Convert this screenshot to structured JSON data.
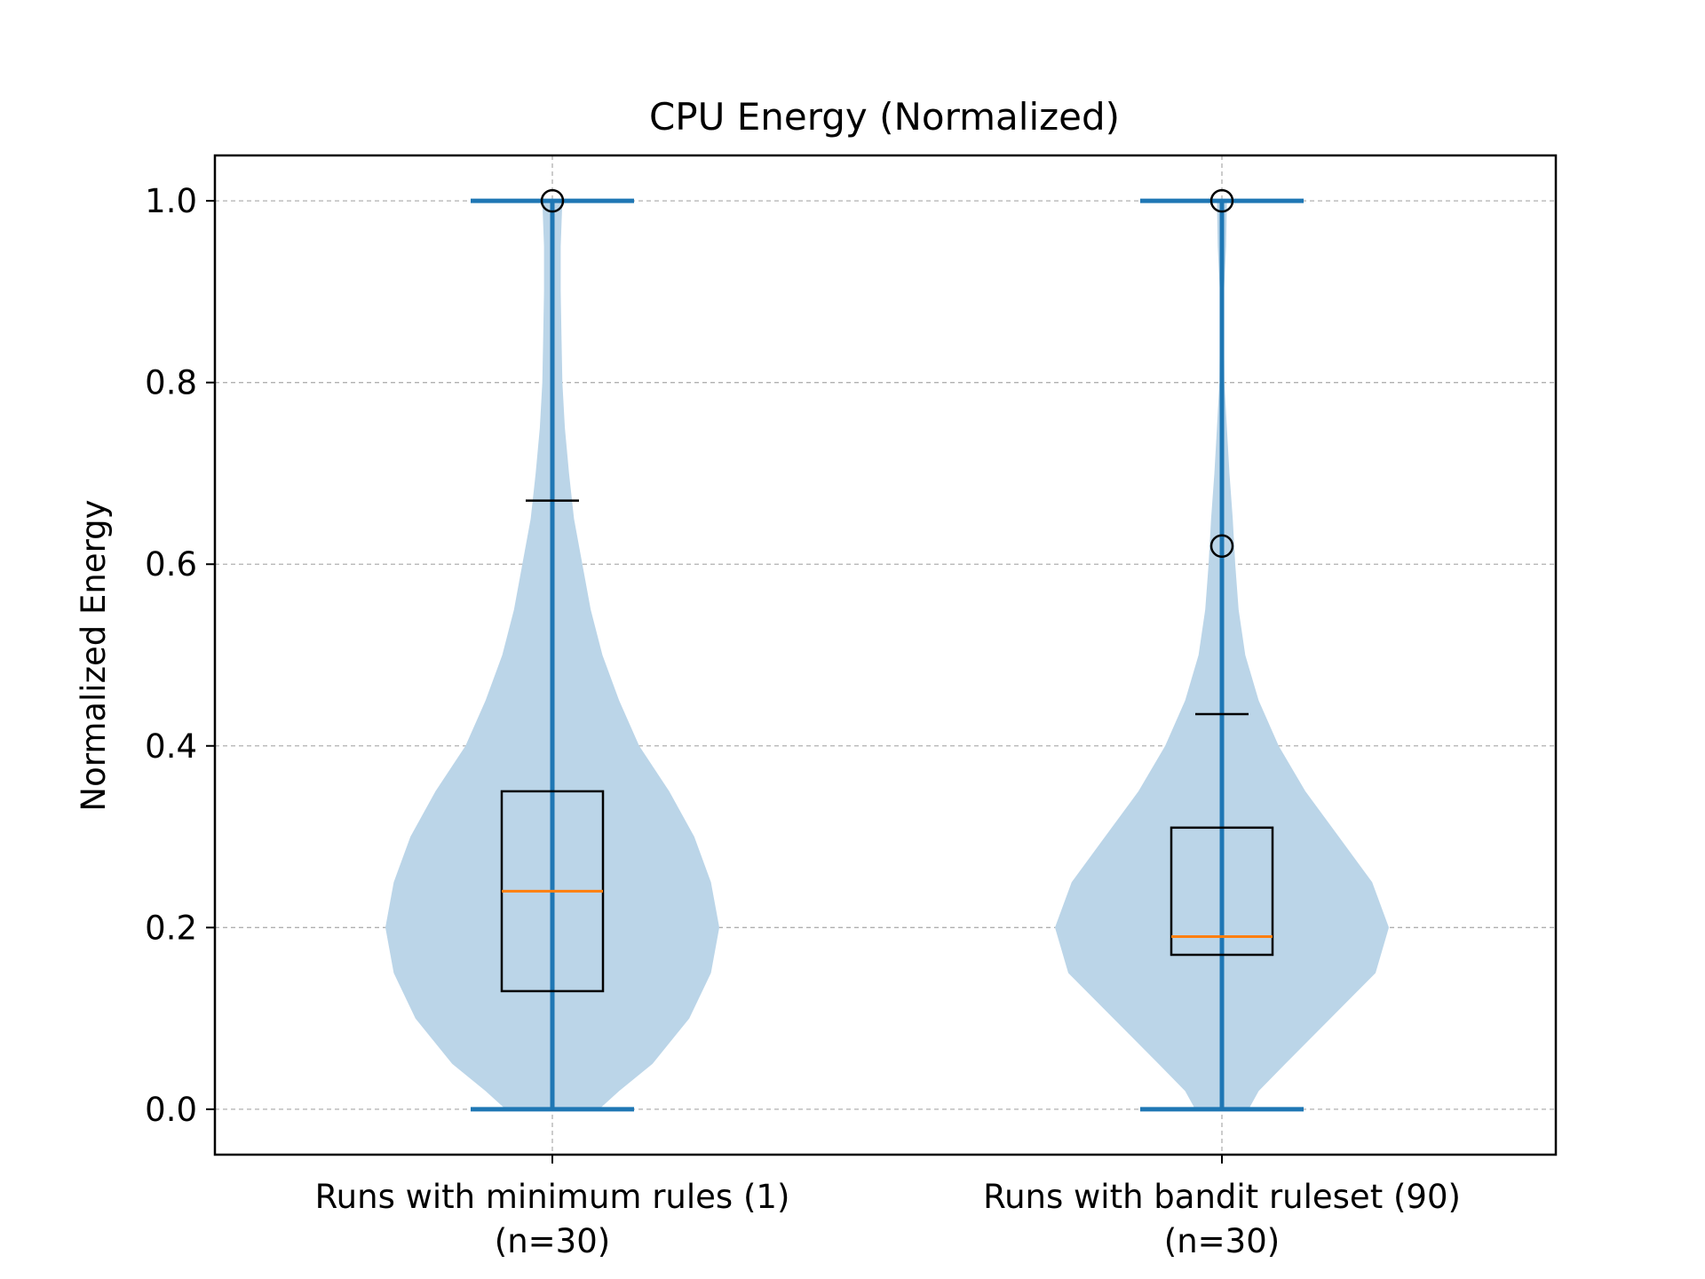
{
  "chart_data": {
    "type": "violin",
    "title": "CPU Energy (Normalized)",
    "xlabel": "",
    "ylabel": "Normalized Energy",
    "ylim": [
      -0.05,
      1.05
    ],
    "yticks": [
      "0.0",
      "0.2",
      "0.4",
      "0.6",
      "0.8",
      "1.0"
    ],
    "grid": true,
    "colors": {
      "violin_fill": "#bbd5e8",
      "violin_line": "#1f77b4",
      "median": "#ff7f0e",
      "box": "#000000",
      "grid": "#b0b0b0"
    },
    "groups": [
      {
        "label": [
          "Runs with minimum rules (1)",
          "(n=30)"
        ],
        "min": 0.0,
        "max": 1.0,
        "mean": 0.67,
        "q1": 0.13,
        "median": 0.24,
        "q3": 0.35,
        "whisker_low": 0.0,
        "whisker_high": 1.0,
        "outliers": [
          1.0
        ],
        "density": [
          [
            0.0,
            0.28
          ],
          [
            0.02,
            0.4
          ],
          [
            0.05,
            0.6
          ],
          [
            0.1,
            0.82
          ],
          [
            0.15,
            0.95
          ],
          [
            0.2,
            1.0
          ],
          [
            0.25,
            0.95
          ],
          [
            0.3,
            0.85
          ],
          [
            0.35,
            0.7
          ],
          [
            0.4,
            0.52
          ],
          [
            0.45,
            0.4
          ],
          [
            0.5,
            0.3
          ],
          [
            0.55,
            0.23
          ],
          [
            0.6,
            0.18
          ],
          [
            0.65,
            0.13
          ],
          [
            0.7,
            0.1
          ],
          [
            0.75,
            0.075
          ],
          [
            0.8,
            0.06
          ],
          [
            0.85,
            0.055
          ],
          [
            0.9,
            0.05
          ],
          [
            0.95,
            0.05
          ],
          [
            1.0,
            0.06
          ]
        ]
      },
      {
        "label": [
          "Runs with bandit ruleset (90)",
          "(n=30)"
        ],
        "min": 0.0,
        "max": 1.0,
        "mean": 0.435,
        "q1": 0.17,
        "median": 0.19,
        "q3": 0.31,
        "whisker_low": 0.0,
        "whisker_high": 1.0,
        "outliers": [
          1.0,
          0.62
        ],
        "density": [
          [
            0.0,
            0.16
          ],
          [
            0.02,
            0.22
          ],
          [
            0.05,
            0.38
          ],
          [
            0.1,
            0.65
          ],
          [
            0.15,
            0.92
          ],
          [
            0.2,
            1.0
          ],
          [
            0.25,
            0.9
          ],
          [
            0.3,
            0.7
          ],
          [
            0.35,
            0.5
          ],
          [
            0.4,
            0.34
          ],
          [
            0.45,
            0.22
          ],
          [
            0.5,
            0.14
          ],
          [
            0.55,
            0.1
          ],
          [
            0.6,
            0.08
          ],
          [
            0.65,
            0.065
          ],
          [
            0.7,
            0.045
          ],
          [
            0.75,
            0.03
          ],
          [
            0.8,
            0.015
          ],
          [
            0.85,
            0.012
          ],
          [
            0.9,
            0.012
          ],
          [
            0.95,
            0.025
          ],
          [
            1.0,
            0.03
          ]
        ]
      }
    ]
  }
}
